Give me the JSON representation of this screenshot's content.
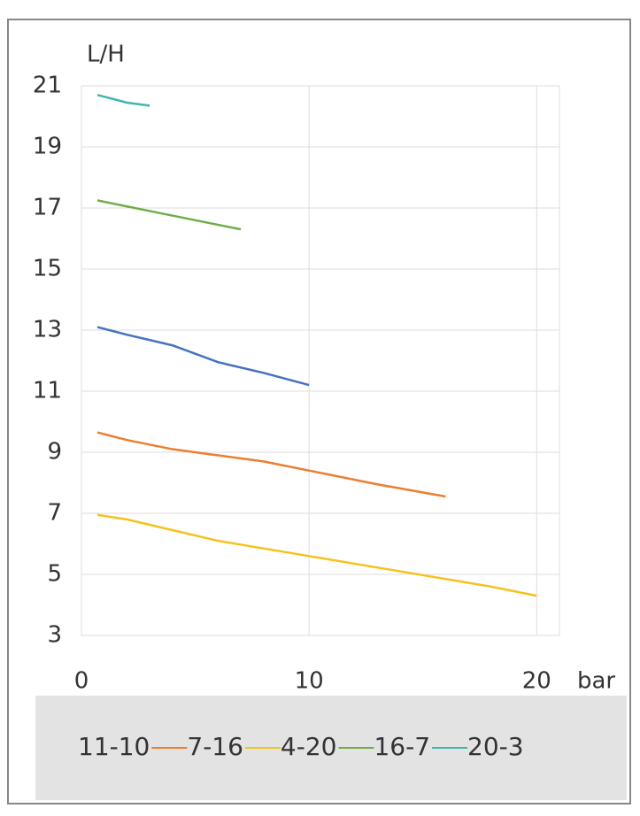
{
  "chart_data": {
    "type": "line",
    "y_label": "L/H",
    "x_label": "bar",
    "xlim": [
      0,
      21
    ],
    "xticks": [
      0,
      10,
      20
    ],
    "ylim": [
      3,
      21
    ],
    "yticks": [
      3,
      5,
      7,
      9,
      11,
      13,
      15,
      17,
      19,
      21
    ],
    "grid": true,
    "series": [
      {
        "name": "11-10",
        "color": "#4472c4",
        "x": [
          0.7,
          2,
          4,
          6,
          8,
          10
        ],
        "values": [
          13.1,
          12.85,
          12.5,
          11.95,
          11.6,
          11.2
        ]
      },
      {
        "name": "7-16",
        "color": "#ed7d31",
        "x": [
          0.7,
          2,
          4,
          6,
          8,
          10,
          13,
          16
        ],
        "values": [
          9.65,
          9.4,
          9.1,
          8.9,
          8.7,
          8.4,
          7.95,
          7.55
        ]
      },
      {
        "name": "4-20",
        "color": "#f5c21b",
        "x": [
          0.7,
          2,
          4,
          6,
          8,
          10,
          12,
          14,
          16,
          18,
          20
        ],
        "values": [
          6.95,
          6.8,
          6.45,
          6.1,
          5.85,
          5.6,
          5.35,
          5.1,
          4.85,
          4.6,
          4.3
        ]
      },
      {
        "name": "16-7",
        "color": "#70ad47",
        "x": [
          0.7,
          2,
          3,
          5,
          7
        ],
        "values": [
          17.25,
          17.05,
          16.9,
          16.6,
          16.3
        ]
      },
      {
        "name": "20-3",
        "color": "#3fb5b0",
        "x": [
          0.7,
          1.5,
          2,
          3
        ],
        "values": [
          20.7,
          20.55,
          20.45,
          20.35
        ]
      }
    ]
  }
}
